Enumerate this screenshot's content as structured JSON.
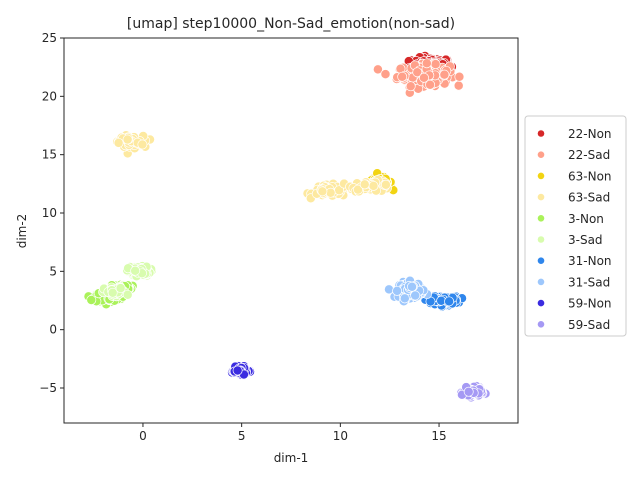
{
  "chart_data": {
    "type": "scatter",
    "title": "[umap] step10000_Non-Sad_emotion(non-sad)",
    "xlabel": "dim-1",
    "ylabel": "dim-2",
    "xlim": [
      -4,
      19
    ],
    "ylim": [
      -8,
      25
    ],
    "xticks": [
      0,
      5,
      10,
      15
    ],
    "yticks": [
      -5,
      0,
      5,
      10,
      15,
      20,
      25
    ],
    "grid": false,
    "legend_placement": "center-right outside",
    "series": [
      {
        "name": "22-Non",
        "color": "#d62728",
        "clusters": [
          {
            "cx": 14.6,
            "cy": 22.7,
            "sx": 0.9,
            "sy": 0.55,
            "n": 160
          }
        ]
      },
      {
        "name": "22-Sad",
        "color": "#ffa08a",
        "clusters": [
          {
            "cx": 14.2,
            "cy": 21.8,
            "sx": 1.2,
            "sy": 0.8,
            "n": 150
          }
        ]
      },
      {
        "name": "63-Non",
        "color": "#f2d412",
        "clusters": [
          {
            "cx": 12.0,
            "cy": 12.6,
            "sx": 0.55,
            "sy": 0.45,
            "n": 70
          }
        ]
      },
      {
        "name": "63-Sad",
        "color": "#fde9a0",
        "clusters": [
          {
            "cx": 9.5,
            "cy": 11.9,
            "sx": 0.8,
            "sy": 0.45,
            "n": 80
          },
          {
            "cx": 11.6,
            "cy": 12.3,
            "sx": 0.9,
            "sy": 0.4,
            "n": 50
          },
          {
            "cx": -0.6,
            "cy": 16.1,
            "sx": 0.55,
            "sy": 0.45,
            "n": 90
          }
        ]
      },
      {
        "name": "3-Non",
        "color": "#aaf25a",
        "clusters": [
          {
            "cx": -1.8,
            "cy": 2.8,
            "sx": 0.6,
            "sy": 0.4,
            "n": 110
          },
          {
            "cx": -1.0,
            "cy": 3.6,
            "sx": 0.4,
            "sy": 0.35,
            "n": 40
          }
        ]
      },
      {
        "name": "3-Sad",
        "color": "#d8fcae",
        "clusters": [
          {
            "cx": -0.2,
            "cy": 5.0,
            "sx": 0.5,
            "sy": 0.35,
            "n": 100
          },
          {
            "cx": -1.4,
            "cy": 3.2,
            "sx": 0.5,
            "sy": 0.4,
            "n": 40
          }
        ]
      },
      {
        "name": "31-Non",
        "color": "#2f86ec",
        "clusters": [
          {
            "cx": 15.3,
            "cy": 2.5,
            "sx": 0.6,
            "sy": 0.3,
            "n": 150
          }
        ]
      },
      {
        "name": "31-Sad",
        "color": "#9dc7fc",
        "clusters": [
          {
            "cx": 13.6,
            "cy": 3.4,
            "sx": 0.55,
            "sy": 0.6,
            "n": 110
          }
        ]
      },
      {
        "name": "59-Non",
        "color": "#3a2be0",
        "clusters": [
          {
            "cx": 4.9,
            "cy": -3.5,
            "sx": 0.35,
            "sy": 0.25,
            "n": 120
          }
        ]
      },
      {
        "name": "59-Sad",
        "color": "#a599f4",
        "clusters": [
          {
            "cx": 16.7,
            "cy": -5.4,
            "sx": 0.4,
            "sy": 0.35,
            "n": 110
          }
        ]
      }
    ]
  }
}
